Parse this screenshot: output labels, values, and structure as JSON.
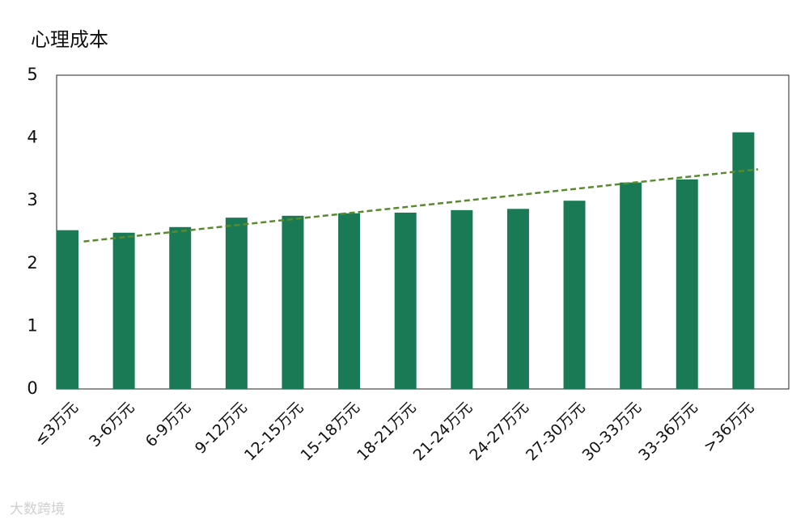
{
  "chart_data": {
    "type": "bar",
    "title": "心理成本",
    "categories": [
      "≤3万元",
      "3-6万元",
      "6-9万元",
      "9-12万元",
      "12-15万元",
      "15-18万元",
      "18-21万元",
      "21-24万元",
      "24-27万元",
      "27-30万元",
      "30-33万元",
      "33-36万元",
      ">36万元"
    ],
    "values": [
      2.53,
      2.49,
      2.58,
      2.73,
      2.76,
      2.8,
      2.81,
      2.85,
      2.87,
      3.0,
      3.29,
      3.34,
      4.09
    ],
    "color": "#1a7a55",
    "ylim": [
      0,
      5
    ],
    "yticks": [
      0,
      1,
      2,
      3,
      4,
      5
    ],
    "grid": false,
    "trendline": {
      "color": "#5a8a2e",
      "start": 2.35,
      "end": 3.5,
      "dashed": true
    },
    "watermark": "大数跨境"
  }
}
